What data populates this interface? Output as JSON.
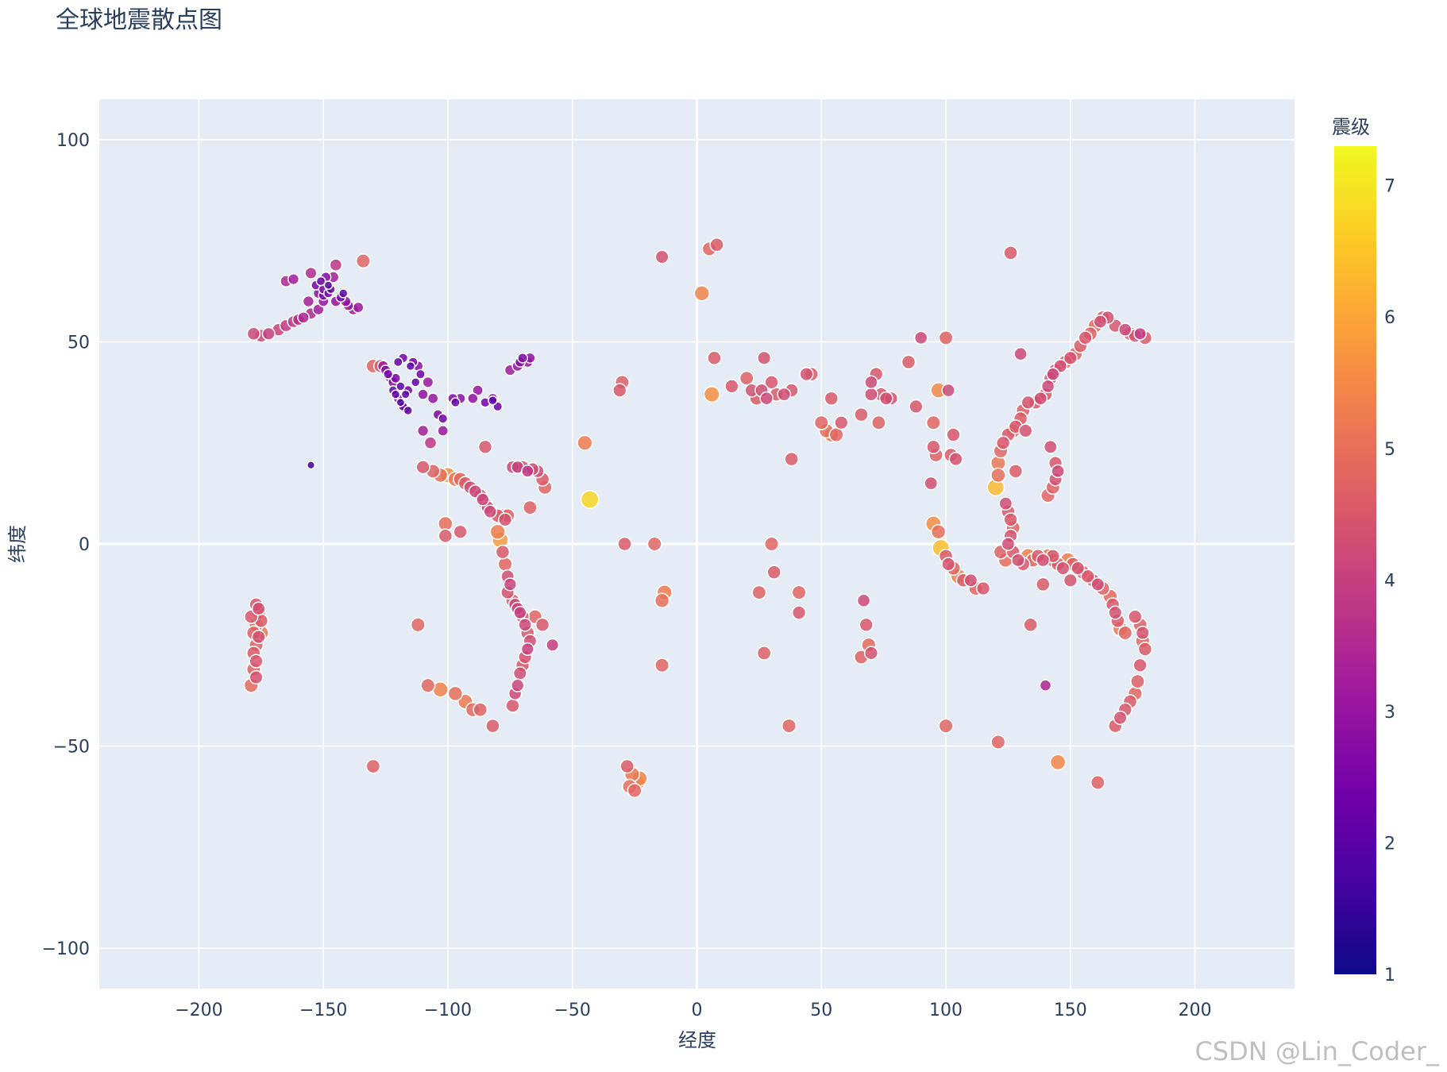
{
  "chart_data": {
    "type": "scatter",
    "title": "全球地震散点图",
    "xlabel": "经度",
    "ylabel": "纬度",
    "xlim": [
      -240,
      240
    ],
    "ylim": [
      -110,
      110
    ],
    "xticks": [
      -200,
      -150,
      -100,
      -50,
      0,
      50,
      100,
      150,
      200
    ],
    "xtick_labels": [
      "−200",
      "−150",
      "−100",
      "−50",
      "0",
      "50",
      "100",
      "150",
      "200"
    ],
    "yticks": [
      -100,
      -50,
      0,
      50,
      100
    ],
    "ytick_labels": [
      "−100",
      "−50",
      "0",
      "50",
      "100"
    ],
    "grid": true,
    "colorbar": {
      "title": "震级",
      "min": 1,
      "max": 7.3,
      "ticks": [
        1,
        2,
        3,
        4,
        5,
        6,
        7
      ],
      "colorscale": [
        "#0d0887",
        "#46039f",
        "#7201a8",
        "#9c179e",
        "#bd3786",
        "#d8576b",
        "#ed7953",
        "#fb9f3a",
        "#fdca26",
        "#f0f921"
      ]
    },
    "points": [
      [
        -178,
        52,
        4.2
      ],
      [
        -175,
        51.5,
        4.3
      ],
      [
        -172,
        52,
        4.0
      ],
      [
        -168,
        53,
        4.1
      ],
      [
        -165,
        54,
        3.9
      ],
      [
        -162,
        55,
        3.8
      ],
      [
        -160,
        55.5,
        3.6
      ],
      [
        -158,
        56,
        3.4
      ],
      [
        -155,
        57,
        3.5
      ],
      [
        -152,
        58,
        3.2
      ],
      [
        -150,
        60,
        3.0
      ],
      [
        -150,
        61.5,
        2.6
      ],
      [
        -148,
        62,
        2.3
      ],
      [
        -147,
        63,
        2.0
      ],
      [
        -150,
        63,
        2.4
      ],
      [
        -152,
        62,
        2.8
      ],
      [
        -153,
        64,
        2.5
      ],
      [
        -151,
        65,
        2.2
      ],
      [
        -149,
        66,
        2.7
      ],
      [
        -145,
        60,
        3.0
      ],
      [
        -143,
        61,
        2.4
      ],
      [
        -141,
        60,
        2.9
      ],
      [
        -140,
        59,
        3.0
      ],
      [
        -138,
        58,
        3.2
      ],
      [
        -136,
        58.5,
        3.1
      ],
      [
        -146,
        66,
        3.3
      ],
      [
        -145,
        69,
        3.8
      ],
      [
        -165,
        65,
        3.5
      ],
      [
        -162,
        65.5,
        3.2
      ],
      [
        -155,
        67,
        3.6
      ],
      [
        -134,
        70,
        4.8
      ],
      [
        -142,
        62,
        2.1
      ],
      [
        -148,
        64,
        1.8
      ],
      [
        -156,
        60,
        3.3
      ],
      [
        -155,
        19.5,
        1.5
      ],
      [
        -122,
        38,
        2.2
      ],
      [
        -121,
        37,
        2.0
      ],
      [
        -120,
        36,
        2.5
      ],
      [
        -119,
        35,
        1.8
      ],
      [
        -118,
        34,
        2.3
      ],
      [
        -117,
        33.5,
        2.6
      ],
      [
        -116,
        33,
        2.1
      ],
      [
        -122,
        40,
        2.8
      ],
      [
        -123,
        41,
        3.0
      ],
      [
        -124,
        42,
        2.4
      ],
      [
        -125,
        43,
        2.7
      ],
      [
        -126,
        44,
        3.2
      ],
      [
        -120,
        45,
        2.2
      ],
      [
        -118,
        46,
        2.5
      ],
      [
        -115,
        44,
        2.0
      ],
      [
        -114,
        45,
        2.4
      ],
      [
        -112,
        44,
        2.8
      ],
      [
        -111,
        42,
        2.3
      ],
      [
        -113,
        40,
        2.1
      ],
      [
        -116,
        38,
        2.5
      ],
      [
        -117,
        37,
        1.9
      ],
      [
        -119,
        39,
        2.0
      ],
      [
        -121,
        41,
        2.6
      ],
      [
        -110,
        37,
        2.9
      ],
      [
        -108,
        40,
        3.1
      ],
      [
        -106,
        36,
        3.0
      ],
      [
        -104,
        32,
        2.6
      ],
      [
        -102,
        31,
        2.4
      ],
      [
        -98,
        36,
        2.7
      ],
      [
        -97,
        35,
        2.2
      ],
      [
        -95,
        36,
        2.8
      ],
      [
        -90,
        36,
        2.9
      ],
      [
        -88,
        38,
        3.0
      ],
      [
        -85,
        35,
        2.5
      ],
      [
        -82,
        36,
        2.7
      ],
      [
        -80,
        34,
        2.3
      ],
      [
        -82,
        35.5,
        2.1
      ],
      [
        -72,
        44,
        3.0
      ],
      [
        -71,
        45,
        2.8
      ],
      [
        -70,
        46,
        2.6
      ],
      [
        -68,
        45,
        3.1
      ],
      [
        -67,
        46,
        2.9
      ],
      [
        -75,
        43,
        3.2
      ],
      [
        -130,
        44,
        4.8
      ],
      [
        -127,
        44,
        4.6
      ],
      [
        -110,
        28,
        3.3
      ],
      [
        -107,
        25,
        3.8
      ],
      [
        -102,
        28,
        3.0
      ],
      [
        -110,
        19,
        4.5
      ],
      [
        -106,
        18,
        4.7
      ],
      [
        -103,
        17,
        5.0
      ],
      [
        -100,
        17,
        5.6
      ],
      [
        -97,
        16,
        5.2
      ],
      [
        -95,
        16,
        4.8
      ],
      [
        -93,
        15,
        4.6
      ],
      [
        -91,
        14,
        4.3
      ],
      [
        -89,
        13,
        4.2
      ],
      [
        -87,
        12,
        4.4
      ],
      [
        -86,
        11,
        4.1
      ],
      [
        -85,
        10,
        4.5
      ],
      [
        -84,
        9,
        4.3
      ],
      [
        -83,
        8,
        4.2
      ],
      [
        -80,
        7,
        4.6
      ],
      [
        -78,
        7,
        4.8
      ],
      [
        -77,
        6,
        4.4
      ],
      [
        -76,
        7,
        4.7
      ],
      [
        -74,
        19,
        4.2
      ],
      [
        -72,
        19,
        4.0
      ],
      [
        -70,
        19,
        4.4
      ],
      [
        -68,
        18,
        3.8
      ],
      [
        -66,
        18.5,
        4.2
      ],
      [
        -64,
        18,
        4.3
      ],
      [
        -62,
        16,
        4.6
      ],
      [
        -61,
        14,
        4.8
      ],
      [
        -85,
        24,
        4.5
      ],
      [
        -67,
        9,
        4.7
      ],
      [
        -80,
        3,
        5.3
      ],
      [
        -79,
        1,
        5.8
      ],
      [
        -78,
        -2,
        4.6
      ],
      [
        -77,
        -5,
        4.8
      ],
      [
        -76,
        -8,
        4.3
      ],
      [
        -75,
        -10,
        4.1
      ],
      [
        -76,
        -12,
        4.4
      ],
      [
        -74,
        -14,
        4.6
      ],
      [
        -73,
        -15,
        4.2
      ],
      [
        -72,
        -16,
        4.1
      ],
      [
        -71,
        -17,
        4.0
      ],
      [
        -70,
        -18,
        4.4
      ],
      [
        -69,
        -20,
        4.2
      ],
      [
        -68,
        -22,
        4.6
      ],
      [
        -67,
        -24,
        4.3
      ],
      [
        -68,
        -26,
        4.0
      ],
      [
        -69,
        -28,
        4.4
      ],
      [
        -70,
        -30,
        4.5
      ],
      [
        -71,
        -32,
        4.3
      ],
      [
        -72,
        -35,
        4.1
      ],
      [
        -73,
        -37,
        4.2
      ],
      [
        -74,
        -40,
        4.5
      ],
      [
        -65,
        -18,
        4.8
      ],
      [
        -62,
        -20,
        4.5
      ],
      [
        -58,
        -25,
        4.0
      ],
      [
        -108,
        -35,
        4.8
      ],
      [
        -103,
        -36,
        5.4
      ],
      [
        -97,
        -37,
        5.0
      ],
      [
        -93,
        -39,
        5.2
      ],
      [
        -90,
        -41,
        4.9
      ],
      [
        -87,
        -41,
        4.7
      ],
      [
        -82,
        -45,
        4.6
      ],
      [
        -112,
        -20,
        4.8
      ],
      [
        -101,
        5,
        5.0
      ],
      [
        -101,
        2,
        4.6
      ],
      [
        -95,
        3,
        4.5
      ],
      [
        -130,
        -55,
        4.7
      ],
      [
        -45,
        25,
        5.3
      ],
      [
        -43,
        11,
        6.8
      ],
      [
        -30,
        40,
        4.7
      ],
      [
        -31,
        38,
        4.5
      ],
      [
        -29,
        0,
        4.6
      ],
      [
        -17,
        0,
        4.8
      ],
      [
        -14,
        71,
        4.4
      ],
      [
        -13,
        -12,
        5.3
      ],
      [
        -14,
        -14,
        5.0
      ],
      [
        -14,
        -30,
        4.8
      ],
      [
        -28,
        -55,
        4.6
      ],
      [
        -26,
        -57,
        5.2
      ],
      [
        -24,
        -59,
        5.5
      ],
      [
        -27,
        -60,
        5.0
      ],
      [
        -25,
        -61,
        4.8
      ],
      [
        -23,
        -58,
        5.4
      ],
      [
        2,
        62,
        5.4
      ],
      [
        5,
        73,
        4.8
      ],
      [
        8,
        74,
        4.6
      ],
      [
        6,
        37,
        5.6
      ],
      [
        7,
        46,
        4.6
      ],
      [
        14,
        39,
        4.5
      ],
      [
        20,
        41,
        4.7
      ],
      [
        22,
        38,
        4.4
      ],
      [
        24,
        36,
        4.6
      ],
      [
        26,
        38,
        4.3
      ],
      [
        28,
        36,
        4.2
      ],
      [
        30,
        40,
        4.5
      ],
      [
        27,
        46,
        4.4
      ],
      [
        32,
        37,
        4.6
      ],
      [
        35,
        37,
        4.3
      ],
      [
        38,
        38,
        4.5
      ],
      [
        38,
        21,
        4.6
      ],
      [
        25,
        -12,
        4.7
      ],
      [
        30,
        0,
        4.8
      ],
      [
        31,
        -7,
        4.6
      ],
      [
        41,
        -12,
        4.8
      ],
      [
        41,
        -17,
        4.5
      ],
      [
        27,
        -27,
        4.7
      ],
      [
        37,
        -45,
        4.8
      ],
      [
        44,
        42,
        4.4
      ],
      [
        46,
        42,
        4.6
      ],
      [
        50,
        30,
        4.8
      ],
      [
        52,
        28,
        5.0
      ],
      [
        54,
        27,
        5.2
      ],
      [
        56,
        27,
        4.8
      ],
      [
        58,
        30,
        4.5
      ],
      [
        54,
        36,
        4.6
      ],
      [
        67,
        -14,
        4.2
      ],
      [
        68,
        -20,
        4.5
      ],
      [
        69,
        -25,
        4.9
      ],
      [
        66,
        -28,
        4.7
      ],
      [
        70,
        -27,
        4.4
      ],
      [
        66,
        32,
        4.6
      ],
      [
        70,
        37,
        4.3
      ],
      [
        70,
        40,
        4.2
      ],
      [
        72,
        42,
        4.5
      ],
      [
        74,
        37,
        4.6
      ],
      [
        76,
        36,
        4.3
      ],
      [
        78,
        36,
        4.4
      ],
      [
        73,
        30,
        4.7
      ],
      [
        85,
        45,
        4.6
      ],
      [
        88,
        34,
        4.5
      ],
      [
        90,
        51,
        4.2
      ],
      [
        95,
        30,
        4.8
      ],
      [
        95,
        24,
        4.5
      ],
      [
        96,
        22,
        4.7
      ],
      [
        94,
        15,
        4.3
      ],
      [
        95,
        5,
        5.6
      ],
      [
        97,
        3,
        5.0
      ],
      [
        98,
        -1,
        6.4
      ],
      [
        100,
        -3,
        4.6
      ],
      [
        101,
        -5,
        4.4
      ],
      [
        103,
        -6,
        4.8
      ],
      [
        105,
        -8,
        5.4
      ],
      [
        107,
        -9,
        4.6
      ],
      [
        110,
        -9,
        4.3
      ],
      [
        112,
        -11,
        4.8
      ],
      [
        115,
        -11,
        4.5
      ],
      [
        100,
        51,
        4.7
      ],
      [
        103,
        27,
        4.5
      ],
      [
        102,
        22,
        4.6
      ],
      [
        104,
        21,
        4.4
      ],
      [
        101,
        38,
        4.2
      ],
      [
        97,
        38,
        5.5
      ],
      [
        100,
        -45,
        4.8
      ],
      [
        120,
        14,
        6.3
      ],
      [
        121,
        17,
        5.0
      ],
      [
        121,
        20,
        5.2
      ],
      [
        122,
        23,
        4.8
      ],
      [
        123,
        25,
        4.5
      ],
      [
        125,
        27,
        4.6
      ],
      [
        127,
        28,
        4.9
      ],
      [
        128,
        29,
        4.5
      ],
      [
        130,
        31,
        4.6
      ],
      [
        131,
        33,
        4.7
      ],
      [
        133,
        35,
        4.4
      ],
      [
        136,
        35,
        4.5
      ],
      [
        138,
        36,
        4.3
      ],
      [
        140,
        37,
        4.6
      ],
      [
        141,
        39,
        4.2
      ],
      [
        142,
        41,
        4.4
      ],
      [
        143,
        42,
        4.1
      ],
      [
        144,
        43,
        4.5
      ],
      [
        146,
        44,
        4.3
      ],
      [
        148,
        45,
        4.7
      ],
      [
        150,
        46,
        4.4
      ],
      [
        152,
        47,
        4.8
      ],
      [
        154,
        49,
        4.6
      ],
      [
        156,
        51,
        4.5
      ],
      [
        158,
        52,
        4.7
      ],
      [
        160,
        54,
        4.9
      ],
      [
        162,
        55,
        4.3
      ],
      [
        163,
        56,
        4.6
      ],
      [
        165,
        56,
        4.4
      ],
      [
        168,
        54,
        4.5
      ],
      [
        172,
        53,
        4.2
      ],
      [
        174,
        52,
        4.8
      ],
      [
        176,
        51.5,
        4.4
      ],
      [
        178,
        52,
        3.9
      ],
      [
        180,
        51,
        4.6
      ],
      [
        124,
        10,
        4.3
      ],
      [
        125,
        8,
        4.6
      ],
      [
        126,
        6,
        4.5
      ],
      [
        127,
        4,
        4.8
      ],
      [
        126,
        2,
        4.4
      ],
      [
        125,
        0,
        4.3
      ],
      [
        122,
        -2,
        4.7
      ],
      [
        124,
        -4,
        5.0
      ],
      [
        127,
        -2,
        4.6
      ],
      [
        129,
        -4,
        4.3
      ],
      [
        131,
        -5,
        4.5
      ],
      [
        133,
        -3,
        5.4
      ],
      [
        135,
        -4,
        4.8
      ],
      [
        137,
        -3,
        4.6
      ],
      [
        139,
        -4,
        4.3
      ],
      [
        141,
        -3,
        5.2
      ],
      [
        143,
        -4,
        4.9
      ],
      [
        145,
        -5,
        4.6
      ],
      [
        147,
        -6,
        4.4
      ],
      [
        149,
        -4,
        5.3
      ],
      [
        151,
        -5,
        4.7
      ],
      [
        153,
        -6,
        4.4
      ],
      [
        155,
        -7,
        4.8
      ],
      [
        157,
        -8,
        4.5
      ],
      [
        159,
        -9,
        4.6
      ],
      [
        161,
        -10,
        4.3
      ],
      [
        163,
        -11,
        4.7
      ],
      [
        166,
        -13,
        4.9
      ],
      [
        167,
        -15,
        4.5
      ],
      [
        168,
        -17,
        4.4
      ],
      [
        169,
        -19,
        4.6
      ],
      [
        170,
        -21,
        5.2
      ],
      [
        172,
        -22,
        4.8
      ],
      [
        176,
        -18,
        4.5
      ],
      [
        178,
        -20,
        4.7
      ],
      [
        179,
        -22,
        4.4
      ],
      [
        179,
        -24,
        4.9
      ],
      [
        180,
        -26,
        4.6
      ],
      [
        178,
        -30,
        4.5
      ],
      [
        177,
        -34,
        4.7
      ],
      [
        176,
        -37,
        4.8
      ],
      [
        174,
        -39,
        4.6
      ],
      [
        172,
        -41,
        4.5
      ],
      [
        170,
        -43,
        4.4
      ],
      [
        168,
        -45,
        4.6
      ],
      [
        140,
        -35,
        3.4
      ],
      [
        134,
        -20,
        4.6
      ],
      [
        121,
        -49,
        4.8
      ],
      [
        145,
        -54,
        5.5
      ],
      [
        161,
        -59,
        4.7
      ],
      [
        126,
        72,
        4.6
      ],
      [
        130,
        47,
        4.2
      ],
      [
        132,
        28,
        4.4
      ],
      [
        128,
        18,
        4.6
      ],
      [
        143,
        14,
        4.7
      ],
      [
        144,
        16,
        4.4
      ],
      [
        145,
        18,
        4.2
      ],
      [
        144,
        20,
        4.5
      ],
      [
        142,
        24,
        4.3
      ],
      [
        141,
        12,
        4.8
      ],
      [
        139,
        -10,
        4.6
      ],
      [
        143,
        -3,
        4.5
      ],
      [
        150,
        -9,
        4.4
      ],
      [
        -177,
        -15,
        4.5
      ],
      [
        -176,
        -17,
        4.8
      ],
      [
        -175,
        -19,
        4.6
      ],
      [
        -177,
        -20,
        5.0
      ],
      [
        -178,
        -22,
        4.7
      ],
      [
        -176,
        -23,
        4.4
      ],
      [
        -177,
        -25,
        4.8
      ],
      [
        -178,
        -27,
        4.6
      ],
      [
        -177,
        -29,
        4.5
      ],
      [
        -178,
        -31,
        4.7
      ],
      [
        -177,
        -33,
        4.4
      ],
      [
        -179,
        -35,
        4.9
      ],
      [
        -176,
        -16,
        4.3
      ],
      [
        -175,
        -22,
        5.2
      ],
      [
        -179,
        -18,
        4.5
      ]
    ]
  },
  "watermark": "CSDN @Lin_Coder_"
}
